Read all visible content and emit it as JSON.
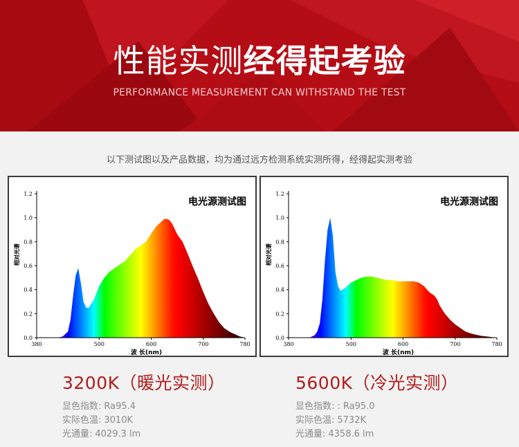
{
  "banner": {
    "title_light": "性能实测",
    "title_bold": "经得起考验",
    "subtitle": "PERFORMANCE MEASUREMENT CAN WITHSTAND THE TEST"
  },
  "intro": "以下测试图以及产品数据，均为通过远方检测系统实测所得，经得起实测考验",
  "charts": [
    {
      "title": "电光源测试图",
      "heading": "3200K（暖光实测）",
      "specs": [
        {
          "label": "显色指数:",
          "value": "Ra95.4"
        },
        {
          "label": "实际色温:",
          "value": "3010K"
        },
        {
          "label": "光通量:",
          "value": "4029.3  lm"
        }
      ]
    },
    {
      "title": "电光源测试图",
      "heading": "5600K（冷光实测）",
      "specs": [
        {
          "label": "显色指数:",
          "value": ": Ra95.0"
        },
        {
          "label": "实际色温:",
          "value": "5732K"
        },
        {
          "label": "光通量:",
          "value": "4358.6  lm"
        }
      ]
    }
  ],
  "chart_data": [
    {
      "type": "area",
      "title": "电光源测试图",
      "xlabel": "波 长(nm)",
      "ylabel": "相对光谱",
      "xlim": [
        380,
        780
      ],
      "ylim": [
        0,
        1.2
      ],
      "xticks": [
        "380",
        "500",
        "600",
        "700",
        "780"
      ],
      "yticks": [
        "0.0",
        "0.2",
        "0.4",
        "0.6",
        "0.8",
        "1.0",
        "1.2"
      ],
      "x": [
        380,
        420,
        430,
        440,
        445,
        450,
        455,
        460,
        465,
        470,
        475,
        480,
        490,
        500,
        510,
        520,
        530,
        540,
        550,
        560,
        570,
        580,
        590,
        600,
        610,
        620,
        625,
        630,
        635,
        640,
        650,
        660,
        670,
        680,
        690,
        700,
        710,
        720,
        730,
        740,
        750,
        760,
        770,
        780
      ],
      "y": [
        0,
        0,
        0.01,
        0.05,
        0.15,
        0.35,
        0.52,
        0.58,
        0.45,
        0.3,
        0.25,
        0.25,
        0.32,
        0.43,
        0.5,
        0.55,
        0.58,
        0.61,
        0.64,
        0.69,
        0.74,
        0.77,
        0.8,
        0.87,
        0.93,
        0.97,
        0.99,
        0.99,
        0.98,
        0.95,
        0.86,
        0.8,
        0.7,
        0.59,
        0.49,
        0.38,
        0.28,
        0.2,
        0.13,
        0.08,
        0.05,
        0.03,
        0.01,
        0
      ]
    },
    {
      "type": "area",
      "title": "电光源测试图",
      "xlabel": "波 长(nm)",
      "ylabel": "相对光谱",
      "xlim": [
        380,
        780
      ],
      "ylim": [
        0,
        1.2
      ],
      "xticks": [
        "380",
        "500",
        "600",
        "700",
        "780"
      ],
      "yticks": [
        "0.0",
        "0.2",
        "0.4",
        "0.6",
        "0.8",
        "1.0",
        "1.2"
      ],
      "x": [
        380,
        420,
        430,
        435,
        440,
        445,
        450,
        455,
        460,
        465,
        470,
        475,
        480,
        490,
        500,
        510,
        520,
        530,
        540,
        550,
        560,
        570,
        580,
        590,
        600,
        610,
        620,
        630,
        640,
        650,
        660,
        665,
        670,
        680,
        690,
        700,
        710,
        720,
        730,
        740,
        750,
        760,
        770,
        780
      ],
      "y": [
        0,
        0,
        0.02,
        0.05,
        0.12,
        0.32,
        0.65,
        0.9,
        1.0,
        0.85,
        0.55,
        0.43,
        0.39,
        0.42,
        0.46,
        0.48,
        0.5,
        0.51,
        0.51,
        0.5,
        0.49,
        0.48,
        0.48,
        0.47,
        0.47,
        0.47,
        0.47,
        0.46,
        0.43,
        0.38,
        0.35,
        0.32,
        0.27,
        0.2,
        0.15,
        0.11,
        0.08,
        0.05,
        0.035,
        0.025,
        0.015,
        0.01,
        0.005,
        0
      ]
    }
  ]
}
